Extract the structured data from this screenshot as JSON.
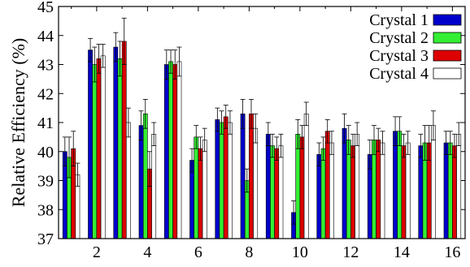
{
  "chart_data": {
    "type": "bar",
    "title": "",
    "xlabel": "",
    "ylabel": "Relative Efficiency (%)",
    "ylim": [
      37,
      45
    ],
    "yticks": [
      37,
      38,
      39,
      40,
      41,
      42,
      43,
      44,
      45
    ],
    "xlim": [
      0.5,
      16.5
    ],
    "xticks": [
      2,
      4,
      6,
      8,
      10,
      12,
      14,
      16
    ],
    "categories": [
      1,
      2,
      3,
      4,
      5,
      6,
      7,
      8,
      9,
      10,
      11,
      12,
      13,
      14,
      15,
      16
    ],
    "legend_position": "top-right",
    "series": [
      {
        "name": "Crystal 1",
        "color": "#0000cc",
        "values": [
          40.0,
          43.5,
          43.6,
          40.9,
          43.0,
          39.7,
          41.1,
          41.3,
          40.6,
          37.9,
          39.9,
          40.8,
          39.9,
          40.7,
          40.2,
          40.3
        ],
        "errors": [
          0.5,
          0.4,
          0.5,
          0.5,
          0.5,
          0.4,
          0.4,
          0.5,
          0.4,
          0.4,
          0.4,
          0.5,
          0.5,
          0.5,
          0.4,
          0.4
        ]
      },
      {
        "name": "Crystal 2",
        "color": "#33ee33",
        "values": [
          39.8,
          43.0,
          43.2,
          41.3,
          43.1,
          40.5,
          41.0,
          39.0,
          40.2,
          40.6,
          40.1,
          40.4,
          40.4,
          40.7,
          40.3,
          40.3
        ],
        "errors": [
          0.7,
          0.6,
          0.6,
          0.5,
          0.4,
          0.4,
          0.4,
          0.4,
          0.4,
          0.5,
          0.4,
          0.5,
          0.5,
          0.5,
          0.6,
          0.4
        ]
      },
      {
        "name": "Crystal 3",
        "color": "#dd0000",
        "values": [
          40.1,
          43.2,
          43.8,
          39.4,
          43.0,
          40.1,
          41.2,
          41.3,
          40.1,
          40.5,
          40.7,
          40.2,
          40.4,
          40.2,
          40.3,
          40.2
        ],
        "errors": [
          0.6,
          0.5,
          0.8,
          0.6,
          0.5,
          0.4,
          0.4,
          0.5,
          0.4,
          0.4,
          0.4,
          0.4,
          0.4,
          0.4,
          0.6,
          0.4
        ]
      },
      {
        "name": "Crystal 4",
        "color": "#ffffff",
        "values": [
          39.2,
          43.3,
          41.0,
          40.6,
          43.1,
          40.4,
          41.0,
          40.8,
          40.2,
          41.3,
          40.3,
          40.6,
          40.3,
          40.3,
          40.9,
          40.6
        ],
        "errors": [
          0.4,
          0.4,
          0.5,
          0.4,
          0.5,
          0.4,
          0.4,
          0.5,
          0.4,
          0.4,
          0.4,
          0.4,
          0.4,
          0.4,
          0.5,
          0.4
        ]
      }
    ]
  }
}
